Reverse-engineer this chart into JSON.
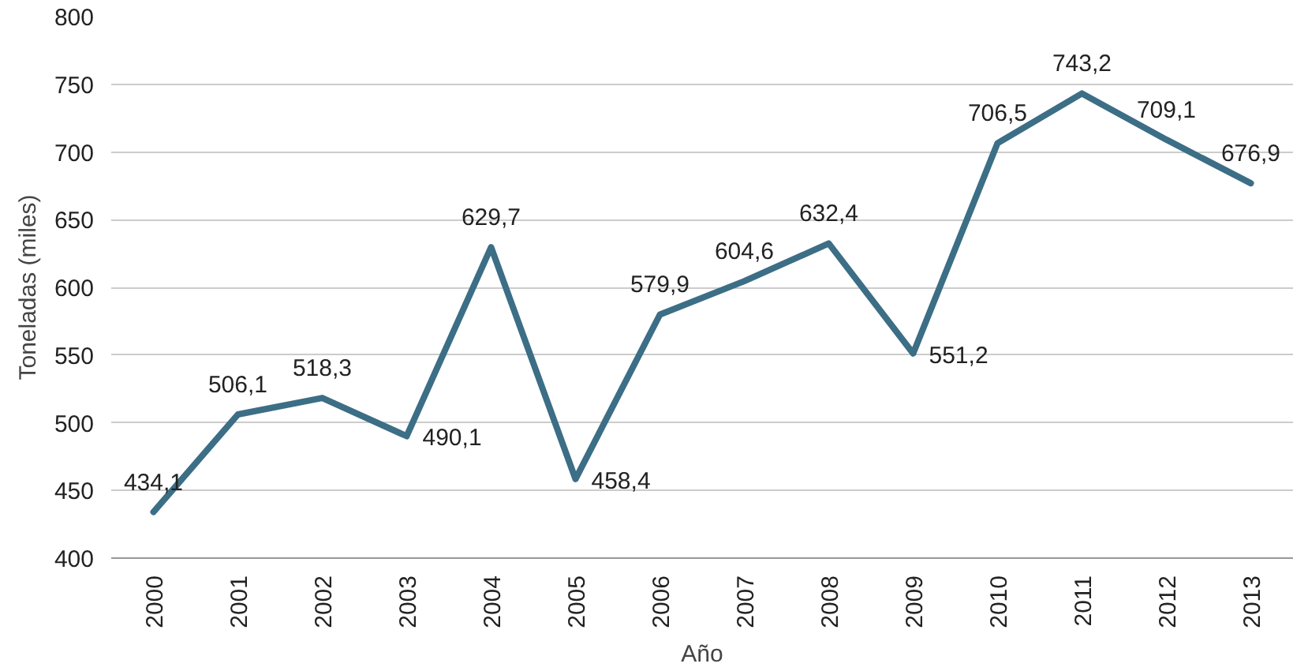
{
  "chart_data": {
    "type": "line",
    "xlabel": "Año",
    "ylabel": "Toneladas (miles)",
    "categories": [
      "2000",
      "2001",
      "2002",
      "2003",
      "2004",
      "2005",
      "2006",
      "2007",
      "2008",
      "2009",
      "2010",
      "2011",
      "2012",
      "2013"
    ],
    "series": [
      {
        "color": "#3c6e86",
        "values": [
          434.1,
          506.1,
          518.3,
          490.1,
          629.7,
          458.4,
          579.9,
          604.6,
          632.4,
          551.2,
          706.5,
          743.2,
          709.1,
          676.9
        ],
        "value_labels": [
          "434,1",
          "506,1",
          "518,3",
          "490,1",
          "629,7",
          "458,4",
          "579,9",
          "604,6",
          "632,4",
          "551,2",
          "706,5",
          "743,2",
          "709,1",
          "676,9"
        ]
      }
    ],
    "ylim": [
      400,
      800
    ],
    "yticks": [
      400,
      450,
      500,
      550,
      600,
      650,
      700,
      750,
      800
    ],
    "grid": "y",
    "marker": "none",
    "line_style": "solid"
  }
}
